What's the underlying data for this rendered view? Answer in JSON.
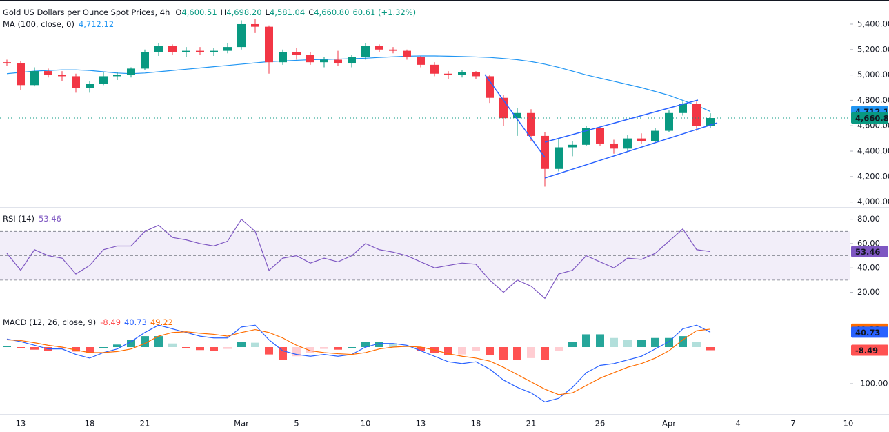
{
  "chart_data": [
    {
      "type": "candlestick",
      "title": "Gold US Dollars per Ounce Spot Prices, 4h",
      "ohlc_legend": [
        {
          "label": "O",
          "value": "4,600.51"
        },
        {
          "label": "H",
          "value": "4,698.20"
        },
        {
          "label": "L",
          "value": "4,581.04"
        },
        {
          "label": "C",
          "value": "4,660.80"
        }
      ],
      "change": "60.61 (+1.32%)",
      "categories": [
        null,
        "13",
        null,
        null,
        null,
        null,
        "18",
        null,
        null,
        null,
        "21",
        null,
        null,
        null,
        null,
        null,
        null,
        "Mar",
        null,
        null,
        null,
        "5",
        null,
        null,
        null,
        null,
        "10",
        null,
        null,
        null,
        "13",
        null,
        null,
        null,
        "18",
        null,
        null,
        null,
        "21",
        null,
        null,
        null,
        null,
        "26",
        null,
        null,
        null,
        null,
        "Apr",
        null,
        null,
        null,
        null,
        "4",
        null,
        null,
        null,
        "7",
        null,
        null,
        null,
        "10"
      ],
      "open": [
        5100,
        5090,
        4920,
        5030,
        5000,
        4990,
        4900,
        4930,
        4990,
        5000,
        5050,
        5180,
        5230,
        5180,
        5190,
        5180,
        5190,
        5220,
        5400,
        5380,
        5100,
        5180,
        5160,
        5100,
        5120,
        5090,
        5140,
        5230,
        5200,
        5190,
        5140,
        5080,
        5010,
        5000,
        5020,
        4990,
        4820,
        4660,
        4700,
        4520,
        4260,
        4430,
        4450,
        4580,
        4460,
        4420,
        4500,
        4480,
        4560,
        4700,
        4770,
        4600.51,
        null,
        null,
        null,
        null,
        null,
        null,
        null,
        null,
        null,
        null
      ],
      "high": [
        5120,
        5110,
        5060,
        5050,
        5030,
        5010,
        4950,
        5020,
        5020,
        5060,
        5200,
        5250,
        5240,
        5220,
        5220,
        5210,
        5250,
        5430,
        5440,
        5390,
        5200,
        5210,
        5180,
        5140,
        5190,
        5160,
        5250,
        5240,
        5220,
        5200,
        5150,
        5100,
        5030,
        5040,
        5030,
        5000,
        4840,
        4740,
        4730,
        4550,
        4500,
        4480,
        4600,
        4590,
        4490,
        4530,
        4540,
        4580,
        4720,
        4790,
        4790,
        4698.2,
        null,
        null,
        null,
        null,
        null,
        null,
        null,
        null,
        null,
        null
      ],
      "low": [
        5070,
        4880,
        4910,
        4980,
        4950,
        4860,
        4860,
        4920,
        4960,
        4980,
        5040,
        5150,
        5160,
        5140,
        5160,
        5150,
        5170,
        5200,
        5330,
        5010,
        5080,
        5120,
        5080,
        5060,
        5070,
        5060,
        5120,
        5180,
        5170,
        5120,
        5060,
        4990,
        4970,
        4980,
        4970,
        4780,
        4600,
        4520,
        4480,
        4120,
        4240,
        4360,
        4440,
        4440,
        4380,
        4400,
        4460,
        4470,
        4550,
        4680,
        4560,
        4581.04,
        null,
        null,
        null,
        null,
        null,
        null,
        null,
        null,
        null,
        null
      ],
      "close": [
        5090,
        4920,
        5030,
        5000,
        4990,
        4900,
        4930,
        4990,
        5000,
        5050,
        5180,
        5230,
        5180,
        5190,
        5180,
        5190,
        5220,
        5400,
        5380,
        5100,
        5180,
        5160,
        5100,
        5120,
        5090,
        5140,
        5230,
        5200,
        5190,
        5140,
        5080,
        5010,
        5000,
        5020,
        4990,
        4820,
        4660,
        4700,
        4520,
        4260,
        4430,
        4450,
        4580,
        4460,
        4420,
        4500,
        4480,
        4560,
        4700,
        4770,
        4600,
        4660.8,
        null,
        null,
        null,
        null,
        null,
        null,
        null,
        null,
        null,
        null
      ],
      "close_label": "4,660.80",
      "up_color": "#089981",
      "down_color": "#f23645",
      "overlays": [
        {
          "name": "MA (100, close, 0)",
          "color": "#2196f3",
          "value_label": "4,712.12",
          "values": [
            5010,
            5020,
            5030,
            5035,
            5040,
            5040,
            5035,
            5025,
            5015,
            5010,
            5015,
            5025,
            5035,
            5045,
            5055,
            5065,
            5075,
            5085,
            5095,
            5105,
            5110,
            5115,
            5120,
            5122,
            5125,
            5128,
            5132,
            5138,
            5143,
            5148,
            5150,
            5150,
            5148,
            5145,
            5142,
            5138,
            5130,
            5120,
            5105,
            5085,
            5060,
            5030,
            5000,
            4975,
            4950,
            4925,
            4900,
            4870,
            4840,
            4800,
            4760,
            4712.12,
            null,
            null,
            null,
            null,
            null,
            null,
            null,
            null,
            null,
            null
          ]
        }
      ],
      "ylim": [
        3960,
        5590
      ],
      "yticks": [
        {
          "value": 4000,
          "label": "4,000.00"
        },
        {
          "value": 4200,
          "label": "4,200.00"
        },
        {
          "value": 4400,
          "label": "4,400.00"
        },
        {
          "value": 4600,
          "label": "4,600.00"
        },
        {
          "value": 4800,
          "label": "4,800.00"
        },
        {
          "value": 5000,
          "label": "5,000.00"
        },
        {
          "value": 5200,
          "label": "5,200.00"
        },
        {
          "value": 5400,
          "label": "5,400.00"
        }
      ]
    },
    {
      "type": "line",
      "title": "RSI (14)",
      "value_label": "53.46",
      "color": "#7e57c2",
      "values": [
        52,
        38,
        55,
        50,
        48,
        35,
        42,
        55,
        58,
        58,
        70,
        75,
        65,
        63,
        60,
        58,
        62,
        80,
        70,
        38,
        48,
        50,
        44,
        48,
        45,
        50,
        60,
        55,
        53,
        50,
        45,
        40,
        42,
        44,
        43,
        30,
        20,
        30,
        25,
        15,
        35,
        38,
        50,
        45,
        40,
        48,
        47,
        52,
        62,
        72,
        55,
        53.46,
        null,
        null,
        null,
        null,
        null,
        null,
        null,
        null,
        null,
        null
      ],
      "levels": [
        30,
        50,
        70
      ],
      "ylim": [
        5,
        90
      ],
      "yticks": [
        {
          "value": 20,
          "label": "20.00"
        },
        {
          "value": 40,
          "label": "40.00"
        },
        {
          "value": 60,
          "label": "60.00"
        },
        {
          "value": 80,
          "label": "80.00"
        }
      ]
    },
    {
      "type": "macd",
      "title": "MACD (12, 26, close, 9)",
      "histogram": {
        "value_label": "-8.49",
        "colors": [
          "#26a69a",
          "#b2dfdb",
          "#ff5252",
          "#ffcdd2"
        ],
        "values": [
          2,
          -3,
          -7,
          -10,
          -5,
          -12,
          -15,
          0,
          7,
          20,
          30,
          30,
          10,
          -2,
          -8,
          -10,
          -5,
          15,
          12,
          -20,
          -35,
          -25,
          -15,
          -5,
          -7,
          0,
          15,
          15,
          10,
          3,
          -10,
          -17,
          -22,
          -20,
          -10,
          -22,
          -35,
          -35,
          -30,
          -35,
          -10,
          15,
          35,
          35,
          25,
          20,
          20,
          25,
          25,
          30,
          15,
          -8.49,
          null,
          null,
          null,
          null,
          null,
          null,
          null,
          null,
          null,
          null
        ]
      },
      "series": [
        {
          "color": "#2962ff",
          "value_label": "40.73",
          "values": [
            22,
            15,
            5,
            -5,
            -5,
            -20,
            -30,
            -15,
            -5,
            15,
            40,
            60,
            50,
            40,
            30,
            25,
            25,
            55,
            60,
            20,
            -10,
            -20,
            -25,
            -20,
            -25,
            -20,
            0,
            10,
            10,
            5,
            -10,
            -25,
            -40,
            -45,
            -40,
            -60,
            -90,
            -110,
            -125,
            -150,
            -140,
            -110,
            -70,
            -50,
            -45,
            -35,
            -25,
            -5,
            15,
            50,
            60,
            40.73,
            null,
            null,
            null,
            null,
            null,
            null,
            null,
            null,
            null,
            null
          ]
        },
        {
          "color": "#ff6d00",
          "value_label": "49.22",
          "values": [
            20,
            18,
            12,
            5,
            0,
            -8,
            -15,
            -15,
            -12,
            -5,
            10,
            30,
            40,
            42,
            38,
            35,
            30,
            40,
            48,
            40,
            25,
            5,
            -10,
            -15,
            -18,
            -20,
            -15,
            -5,
            0,
            2,
            0,
            -8,
            -18,
            -25,
            -30,
            -38,
            -55,
            -75,
            -95,
            -115,
            -130,
            -125,
            -105,
            -85,
            -70,
            -55,
            -45,
            -30,
            -10,
            20,
            45,
            49.22,
            null,
            null,
            null,
            null,
            null,
            null,
            null,
            null,
            null,
            null
          ]
        }
      ],
      "ylim": [
        -183,
        100
      ],
      "yticks": [
        {
          "value": -100,
          "label": "-100.00"
        }
      ]
    }
  ]
}
